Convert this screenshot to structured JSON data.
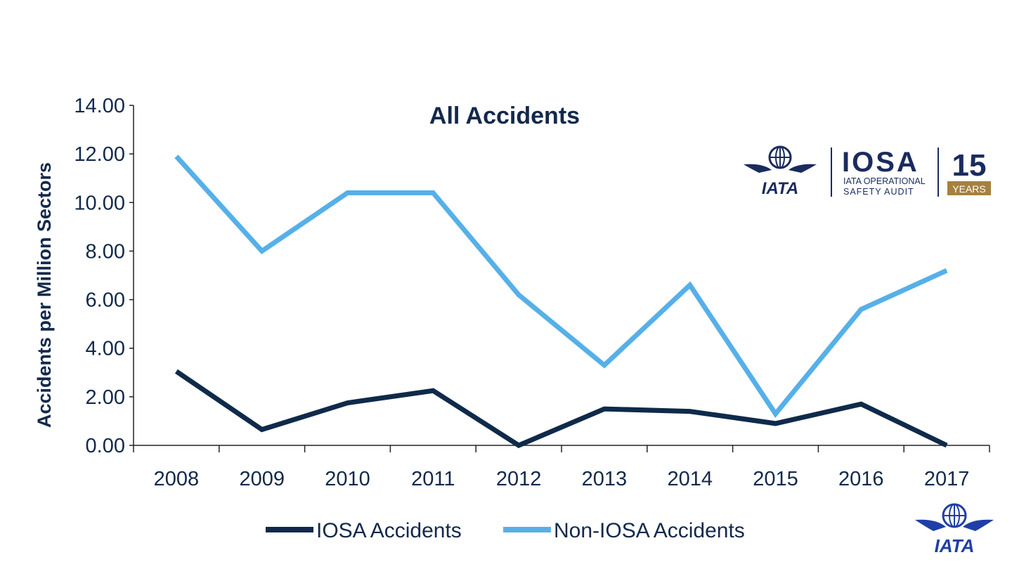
{
  "chart_data": {
    "type": "line",
    "title": "All Accidents",
    "ylabel": "Accidents per Million Sectors",
    "xlabel": "",
    "categories": [
      "2008",
      "2009",
      "2010",
      "2011",
      "2012",
      "2013",
      "2014",
      "2015",
      "2016",
      "2017"
    ],
    "ylim": [
      0,
      14
    ],
    "yticks": [
      "0.00",
      "2.00",
      "4.00",
      "6.00",
      "8.00",
      "10.00",
      "12.00",
      "14.00"
    ],
    "grid": false,
    "legend_position": "bottom",
    "series": [
      {
        "name": "IOSA Accidents",
        "color": "#0f2a4a",
        "values": [
          3.05,
          0.65,
          1.75,
          2.25,
          0.0,
          1.5,
          1.4,
          0.9,
          1.7,
          0.0
        ]
      },
      {
        "name": "Non-IOSA Accidents",
        "color": "#56b0e8",
        "values": [
          11.9,
          8.0,
          10.4,
          10.4,
          6.2,
          3.3,
          6.6,
          1.3,
          5.6,
          7.2
        ]
      }
    ]
  },
  "logo": {
    "iata_text": "IATA",
    "iosa_text": "IOSA",
    "iosa_sub1": "IATA OPERATIONAL",
    "iosa_sub2": "SAFETY AUDIT",
    "years_num": "15",
    "years_text": "YEARS",
    "brand_navy": "#1a2b5e",
    "brand_gold": "#a5813f",
    "brand_blue": "#1f3fa6"
  },
  "footer_logo": {
    "text": "IATA",
    "color": "#1f3fa6"
  }
}
